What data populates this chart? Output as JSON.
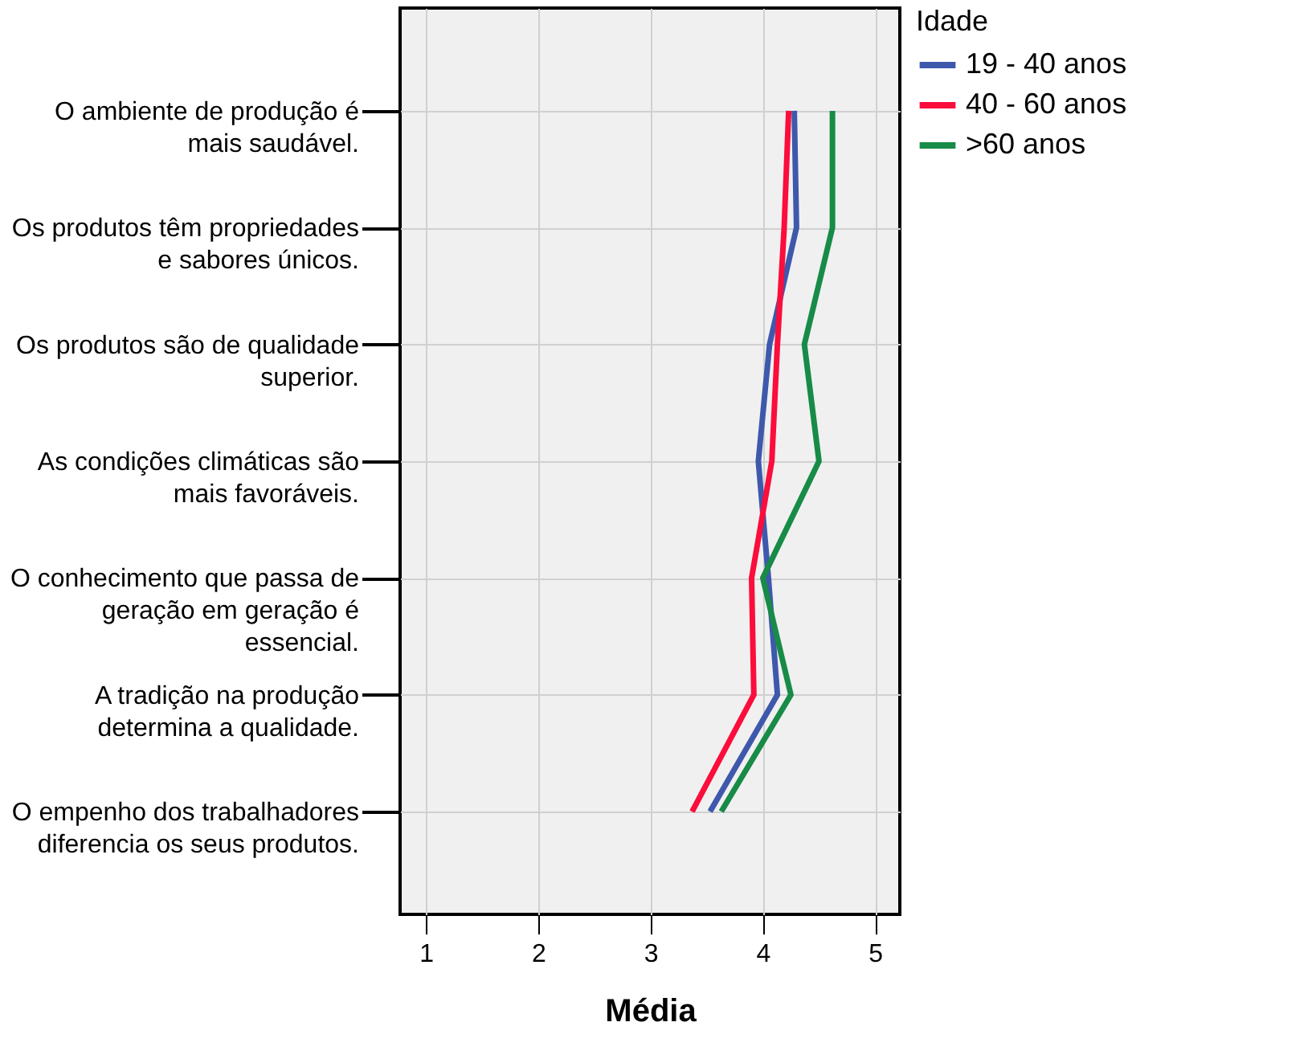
{
  "chart_data": {
    "type": "line",
    "orientation": "horizontal",
    "xlabel": "Média",
    "legend_title": "Idade",
    "legend": "top right",
    "grid": true,
    "categories": [
      "O ambiente de produção é\nmais saudável.",
      "Os produtos têm propriedades\ne sabores únicos.",
      "Os produtos são de qualidade\nsuperior.",
      "As condições climáticas são\nmais favoráveis.",
      "O conhecimento que passa de\ngeração em geração é\nessencial.",
      "A tradição na produção\ndetermina a qualidade.",
      "O empenho dos trabalhadores\ndiferencia os seus produtos."
    ],
    "xlim": [
      0.77,
      5.22
    ],
    "xticks": [
      1,
      2,
      3,
      4,
      5
    ],
    "series": [
      {
        "name": "19 - 40 anos",
        "color": "#3e58ac",
        "values": [
          4.28,
          4.3,
          4.06,
          3.96,
          4.05,
          4.13,
          3.53
        ]
      },
      {
        "name": "40 - 60 anos",
        "color": "#fb0d3c",
        "values": [
          4.23,
          4.19,
          4.13,
          4.08,
          3.9,
          3.92,
          3.37
        ]
      },
      {
        "name": ">60 anos",
        "color": "#178b47",
        "values": [
          4.62,
          4.62,
          4.37,
          4.5,
          4.0,
          4.25,
          3.63
        ]
      }
    ]
  }
}
